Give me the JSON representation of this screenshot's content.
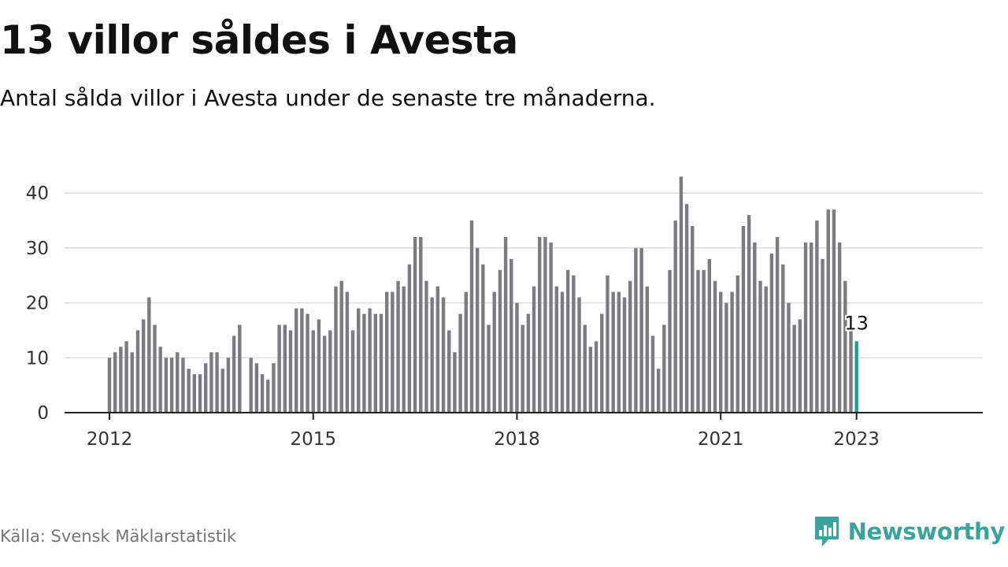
{
  "title": "13 villor såldes i Avesta",
  "subtitle": "Antal sålda villor i Avesta under de senaste tre månaderna.",
  "source": "Källa: Svensk Mäklarstatistik",
  "brand": "Newsworthy",
  "colors": {
    "bar": "#7b7b80",
    "highlight": "#1a9e96",
    "grid": "#dcdcdc",
    "axis": "#222222",
    "brand": "#3aa39a",
    "source": "#757575"
  },
  "chart_data": {
    "type": "bar",
    "start": "2012-01",
    "ylim": [
      0,
      45
    ],
    "yticks": [
      0,
      10,
      20,
      30,
      40
    ],
    "xticks": [
      "2012",
      "2015",
      "2018",
      "2021",
      "2023"
    ],
    "grid": true,
    "legend": "none",
    "values": [
      10,
      11,
      12,
      13,
      11,
      15,
      17,
      21,
      16,
      12,
      10,
      10,
      11,
      10,
      8,
      7,
      7,
      9,
      11,
      11,
      8,
      10,
      14,
      16,
      null,
      10,
      9,
      7,
      6,
      9,
      16,
      16,
      15,
      19,
      19,
      18,
      15,
      17,
      14,
      15,
      23,
      24,
      22,
      15,
      19,
      18,
      19,
      18,
      18,
      22,
      22,
      24,
      23,
      27,
      32,
      32,
      24,
      21,
      23,
      21,
      15,
      11,
      18,
      22,
      35,
      30,
      27,
      16,
      22,
      26,
      32,
      28,
      20,
      16,
      18,
      23,
      32,
      32,
      31,
      23,
      22,
      26,
      25,
      21,
      16,
      12,
      13,
      18,
      25,
      22,
      22,
      21,
      24,
      30,
      30,
      23,
      14,
      8,
      16,
      26,
      35,
      43,
      38,
      34,
      26,
      26,
      28,
      24,
      22,
      20,
      22,
      25,
      34,
      36,
      31,
      24,
      23,
      29,
      32,
      27,
      20,
      16,
      17,
      31,
      31,
      35,
      28,
      37,
      37,
      31,
      24,
      15,
      13
    ],
    "highlight_label": "13"
  }
}
